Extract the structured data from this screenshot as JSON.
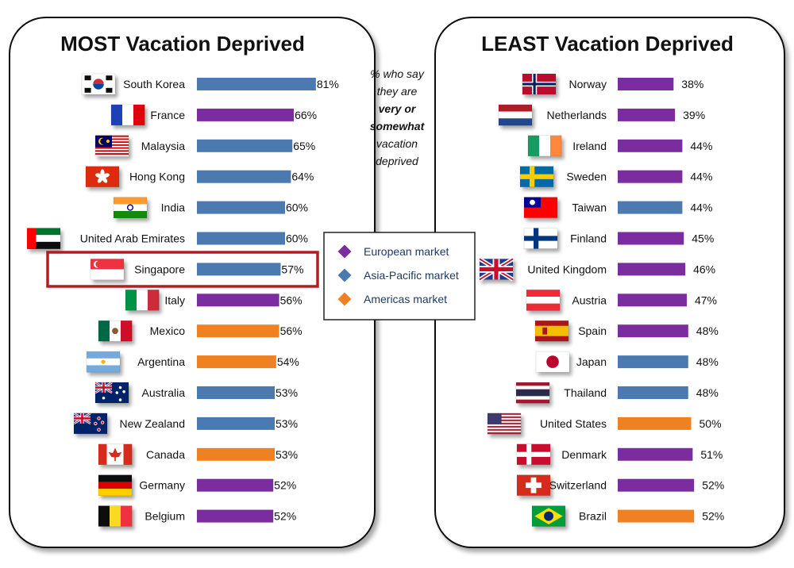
{
  "colors": {
    "European market": "#7B2C9F",
    "Asia-Pacific market": "#4A7AB0",
    "Americas market": "#F08122",
    "highlight": "#B01E23"
  },
  "note": {
    "lines": [
      "% who say",
      "they are",
      "very or",
      "somewhat",
      "vacation",
      "deprived"
    ],
    "bold_words": [
      "very",
      "somewhat"
    ]
  },
  "legend": {
    "items": [
      {
        "label": "European market",
        "color": "#7B2C9F"
      },
      {
        "label": "Asia-Pacific market",
        "color": "#4A7AB0"
      },
      {
        "label": "Americas market",
        "color": "#F08122"
      }
    ]
  },
  "chart_data": [
    {
      "type": "bar",
      "orientation": "horizontal",
      "title": "MOST Vacation Deprived",
      "highlighted": "Singapore",
      "categories": [
        "South Korea",
        "France",
        "Malaysia",
        "Hong Kong",
        "India",
        "United Arab Emirates",
        "Singapore",
        "Italy",
        "Mexico",
        "Argentina",
        "Australia",
        "New Zealand",
        "Canada",
        "Germany",
        "Belgium"
      ],
      "values": [
        81,
        66,
        65,
        64,
        60,
        60,
        57,
        56,
        56,
        54,
        53,
        53,
        53,
        52,
        52
      ],
      "value_labels": [
        "81%",
        "66%",
        "65%",
        "64%",
        "60%",
        "60%",
        "57%",
        "56%",
        "56%",
        "54%",
        "53%",
        "53%",
        "53%",
        "52%",
        "52%"
      ],
      "markets": [
        "Asia-Pacific market",
        "European market",
        "Asia-Pacific market",
        "Asia-Pacific market",
        "Asia-Pacific market",
        "Asia-Pacific market",
        "Asia-Pacific market",
        "European market",
        "Americas market",
        "Americas market",
        "Asia-Pacific market",
        "Asia-Pacific market",
        "Americas market",
        "European market",
        "European market"
      ],
      "flag_icons": [
        "south-korea-flag-icon",
        "france-flag-icon",
        "malaysia-flag-icon",
        "hong-kong-flag-icon",
        "india-flag-icon",
        "united-arab-emirates-flag-icon",
        "singapore-flag-icon",
        "italy-flag-icon",
        "mexico-flag-icon",
        "argentina-flag-icon",
        "australia-flag-icon",
        "new-zealand-flag-icon",
        "canada-flag-icon",
        "germany-flag-icon",
        "belgium-flag-icon"
      ]
    },
    {
      "type": "bar",
      "orientation": "horizontal",
      "title": "LEAST Vacation Deprived",
      "categories": [
        "Norway",
        "Netherlands",
        "Ireland",
        "Sweden",
        "Taiwan",
        "Finland",
        "United Kingdom",
        "Austria",
        "Spain",
        "Japan",
        "Thailand",
        "United States",
        "Denmark",
        "Switzerland",
        "Brazil"
      ],
      "values": [
        38,
        39,
        44,
        44,
        44,
        45,
        46,
        47,
        48,
        48,
        48,
        50,
        51,
        52,
        52
      ],
      "value_labels": [
        "38%",
        "39%",
        "44%",
        "44%",
        "44%",
        "45%",
        "46%",
        "47%",
        "48%",
        "48%",
        "48%",
        "50%",
        "51%",
        "52%",
        "52%"
      ],
      "markets": [
        "European market",
        "European market",
        "European market",
        "European market",
        "Asia-Pacific market",
        "European market",
        "European market",
        "European market",
        "European market",
        "Asia-Pacific market",
        "Asia-Pacific market",
        "Americas market",
        "European market",
        "European market",
        "Americas market"
      ],
      "flag_icons": [
        "norway-flag-icon",
        "netherlands-flag-icon",
        "ireland-flag-icon",
        "sweden-flag-icon",
        "taiwan-flag-icon",
        "finland-flag-icon",
        "united-kingdom-flag-icon",
        "austria-flag-icon",
        "spain-flag-icon",
        "japan-flag-icon",
        "thailand-flag-icon",
        "united-states-flag-icon",
        "denmark-flag-icon",
        "switzerland-flag-icon",
        "brazil-flag-icon"
      ]
    }
  ]
}
